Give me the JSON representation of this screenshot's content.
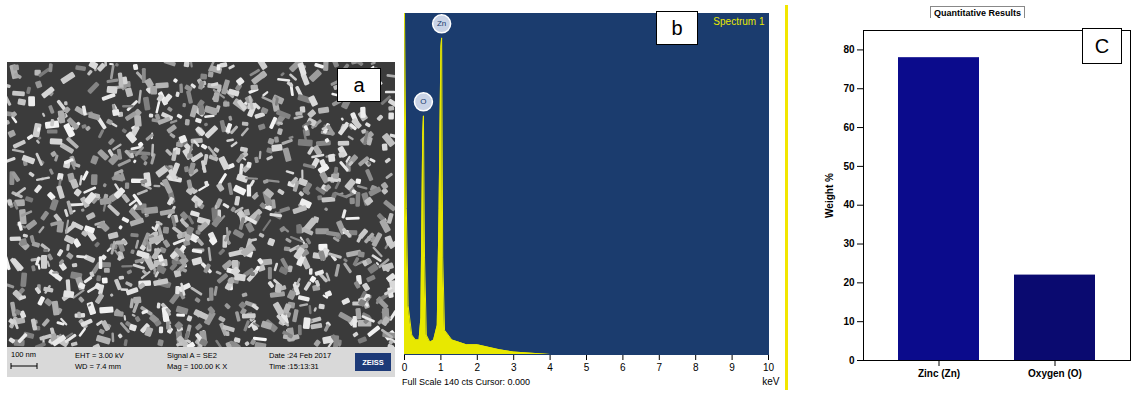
{
  "image_panel": {
    "panel": "a",
    "scale_bar": "100 nm",
    "info": [
      [
        "EHT = 3.00 kV",
        "WD = 7.4 mm"
      ],
      [
        "Signal A = SE2",
        "Mag = 100.00 K X"
      ],
      [
        "Date :24 Feb 2017",
        "Time :15:13:31"
      ]
    ],
    "logo": "ZEISS"
  },
  "chart_data": [
    {
      "type": "area",
      "panel": "b",
      "title": "Spectrum 1",
      "x_label": "keV",
      "footer": "Full Scale 140 cts Cursor: 0.000",
      "x": [
        0,
        0.05,
        0.1,
        0.2,
        0.3,
        0.4,
        0.45,
        0.5,
        0.52,
        0.55,
        0.6,
        0.7,
        0.8,
        0.9,
        0.95,
        1.0,
        1.02,
        1.05,
        1.1,
        1.2,
        1.3,
        1.5,
        1.7,
        2.0,
        2.3,
        2.6,
        3.0,
        4,
        6,
        8,
        10
      ],
      "values": [
        140,
        60,
        20,
        8,
        6,
        6,
        15,
        90,
        98,
        40,
        8,
        5,
        6,
        12,
        60,
        126,
        130,
        40,
        10,
        8,
        6,
        5,
        4,
        4,
        3,
        2,
        1,
        0,
        0,
        0,
        0
      ],
      "color": "#e8e800",
      "xlim": [
        0,
        10
      ],
      "xticks": [
        0,
        1,
        2,
        3,
        4,
        5,
        6,
        7,
        8,
        9,
        10
      ],
      "ylim": [
        0,
        140
      ],
      "tick_labels": "x",
      "peak_labels": [
        {
          "label": "O",
          "x": 0.52
        },
        {
          "label": "Zn",
          "x": 1.02
        }
      ]
    },
    {
      "type": "bar",
      "panel": "C",
      "title": "Quantitative Results",
      "y_label": "Weight %",
      "categories": [
        "Zinc (Zn)",
        "Oxygen (O)"
      ],
      "values": [
        78,
        22
      ],
      "colors": [
        "#0b0b8c",
        "#0a0a70"
      ],
      "ylim": [
        0,
        85
      ],
      "yticks": [
        0,
        10,
        20,
        30,
        40,
        50,
        60,
        70,
        80
      ],
      "grid": false
    }
  ]
}
